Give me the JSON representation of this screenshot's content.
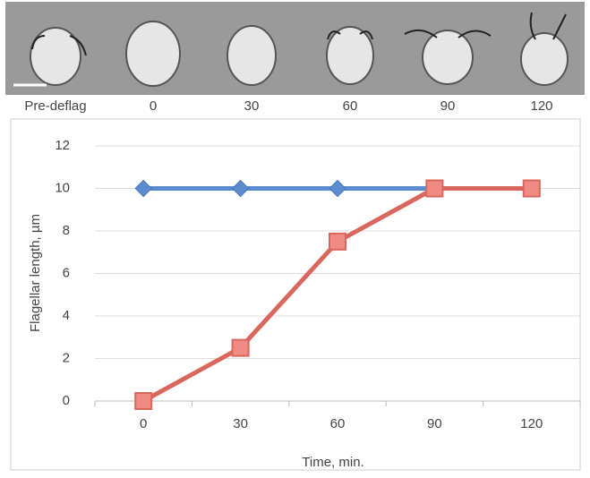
{
  "image_strip": {
    "labels": [
      "Pre-deflag",
      "0",
      "30",
      "60",
      "90",
      "120"
    ]
  },
  "chart_data": {
    "type": "line",
    "x_label": "Time, min.",
    "y_label": "Flagellar length, µm",
    "categories": [
      "0",
      "30",
      "60",
      "90",
      "120"
    ],
    "series": [
      {
        "color": "#5b8ccf",
        "marker": "diamond",
        "values": [
          10,
          10,
          10,
          10,
          null
        ]
      },
      {
        "color": "#d9675d",
        "marker": "square",
        "values": [
          0,
          2.5,
          7.5,
          10,
          10
        ]
      }
    ],
    "ylim": [
      0,
      12
    ],
    "yticks": [
      0,
      2,
      4,
      6,
      8,
      10,
      12
    ],
    "grid": true
  }
}
